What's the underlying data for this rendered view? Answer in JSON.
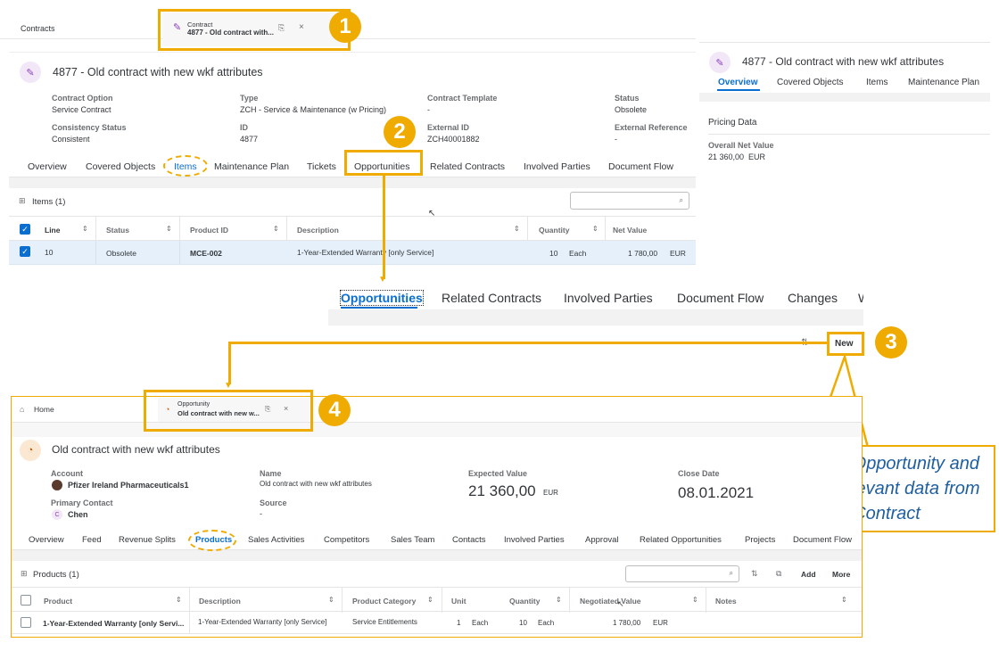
{
  "contract_shell": {
    "breadcrumb": "Contracts",
    "tab_type": "Contract",
    "tab_title": "4877 - Old contract with...",
    "tab_close": "×"
  },
  "contract": {
    "title": "4877 - Old contract with new wkf attributes",
    "fields": {
      "contract_option_label": "Contract Option",
      "contract_option_value": "Service Contract",
      "type_label": "Type",
      "type_value": "ZCH - Service & Maintenance (w Pricing)",
      "template_label": "Contract Template",
      "template_value": "-",
      "status_label": "Status",
      "status_value": "Obsolete",
      "consistency_label": "Consistency Status",
      "consistency_value": "Consistent",
      "id_label": "ID",
      "id_value": "4877",
      "external_id_label": "External ID",
      "external_id_value": "ZCH40001882",
      "external_ref_label": "External Reference",
      "external_ref_value": "-"
    },
    "tabs": [
      "Overview",
      "Covered Objects",
      "Items",
      "Maintenance Plan",
      "Tickets",
      "Opportunities",
      "Related Contracts",
      "Involved Parties",
      "Document Flow"
    ],
    "items": {
      "title": "Items (1)",
      "headers": [
        "Line",
        "Status",
        "Product ID",
        "Description",
        "Quantity",
        "Net Value"
      ],
      "row": {
        "line": "10",
        "status": "Obsolete",
        "product_id": "MCE-002",
        "description": "1-Year-Extended Warranty [only Service]",
        "quantity": "10",
        "unit": "Each",
        "net_value": "1 780,00",
        "currency": "EUR"
      }
    }
  },
  "right_panel": {
    "title": "4877 - Old contract with new wkf attributes",
    "tabs": [
      "Overview",
      "Covered Objects",
      "Items",
      "Maintenance Plan"
    ],
    "section": "Pricing Data",
    "net_label": "Overall Net Value",
    "net_value": "21 360,00",
    "net_currency": "EUR"
  },
  "zoom_tabs": [
    "Opportunities",
    "Related Contracts",
    "Involved Parties",
    "Document Flow",
    "Changes",
    "W"
  ],
  "new_button": "New",
  "callout": "Create Opportunity and copy relevant data from Contract",
  "steps": [
    "1",
    "2",
    "3",
    "4"
  ],
  "opportunity_shell": {
    "home": "Home",
    "tab_type": "Opportunity",
    "tab_title": "Old contract with new w...",
    "tab_close": "×"
  },
  "opportunity": {
    "title": "Old contract with new wkf attributes",
    "account_label": "Account",
    "account_value": "Pfizer Ireland Pharmaceuticals1",
    "name_label": "Name",
    "name_value": "Old contract with new wkf attributes",
    "expected_label": "Expected Value",
    "expected_value": "21 360,00",
    "expected_currency": "EUR",
    "close_label": "Close Date",
    "close_value": "08.01.2021",
    "contact_label": "Primary Contact",
    "contact_initial": "C",
    "contact_value": "Chen",
    "source_label": "Source",
    "source_value": "-",
    "tabs": [
      "Overview",
      "Feed",
      "Revenue Splits",
      "Products",
      "Sales Activities",
      "Competitors",
      "Sales Team",
      "Contacts",
      "Involved Parties",
      "Approval",
      "Related Opportunities",
      "Projects",
      "Document Flow"
    ],
    "products": {
      "title": "Products (1)",
      "add": "Add",
      "more": "More",
      "headers": [
        "Product",
        "Description",
        "Product Category",
        "Unit",
        "Quantity",
        "Negotiated Value",
        "Notes"
      ],
      "row": {
        "product": "1-Year-Extended Warranty [only Servi...",
        "description": "1-Year-Extended Warranty [only Service]",
        "category": "Service Entitlements",
        "unit_qty": "1",
        "unit": "Each",
        "quantity": "10",
        "quantity_unit": "Each",
        "value": "1 780,00",
        "currency": "EUR"
      }
    }
  },
  "colors": {
    "accent": "#f0ab00",
    "link": "#0a6ed1"
  }
}
